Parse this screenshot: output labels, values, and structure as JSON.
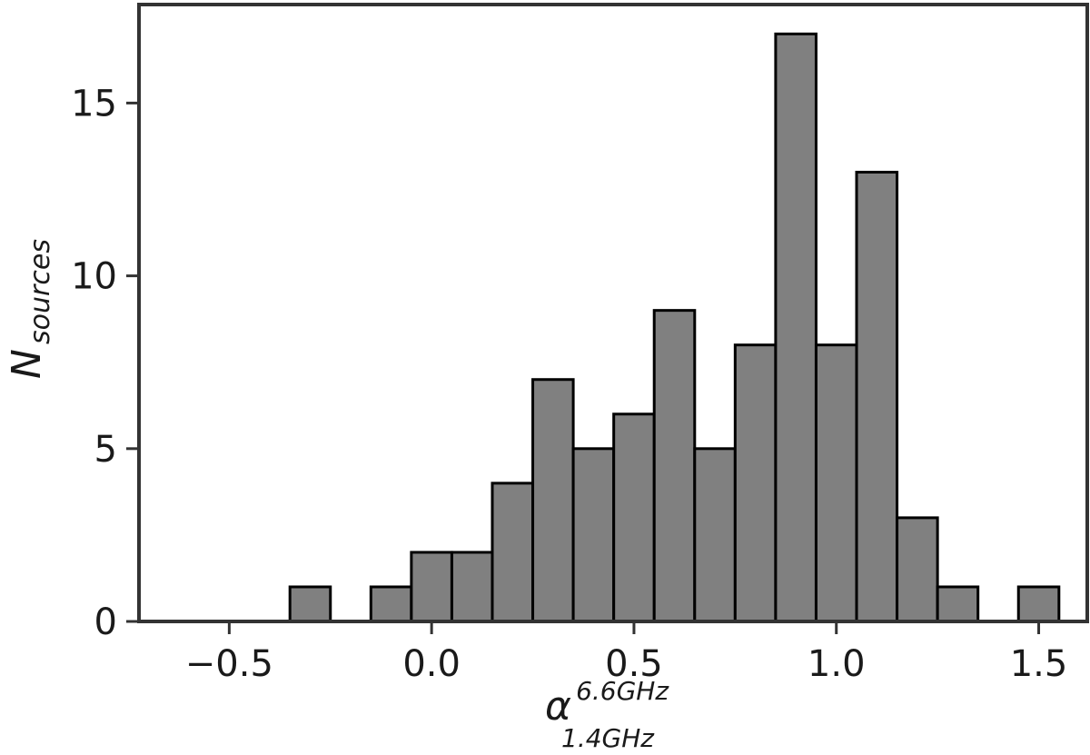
{
  "chart_data": {
    "type": "bar",
    "title": "",
    "xlabel": {
      "symbol": "α",
      "superscript": "6.6GHz",
      "subscript": "1.4GHz"
    },
    "ylabel": {
      "symbol": "N",
      "subscript": "sources"
    },
    "bin_width": 0.1,
    "bins": [
      {
        "left": -0.35,
        "count": 1
      },
      {
        "left": -0.15,
        "count": 1
      },
      {
        "left": -0.05,
        "count": 2
      },
      {
        "left": 0.05,
        "count": 2
      },
      {
        "left": 0.15,
        "count": 4
      },
      {
        "left": 0.25,
        "count": 7
      },
      {
        "left": 0.35,
        "count": 5
      },
      {
        "left": 0.45,
        "count": 6
      },
      {
        "left": 0.55,
        "count": 9
      },
      {
        "left": 0.65,
        "count": 5
      },
      {
        "left": 0.75,
        "count": 8
      },
      {
        "left": 0.85,
        "count": 17
      },
      {
        "left": 0.95,
        "count": 8
      },
      {
        "left": 1.05,
        "count": 13
      },
      {
        "left": 1.15,
        "count": 3
      },
      {
        "left": 1.25,
        "count": 1
      },
      {
        "left": 1.45,
        "count": 1
      }
    ],
    "xlim": [
      -0.723,
      1.62
    ],
    "ylim": [
      0,
      17.85
    ],
    "xticks": [
      -0.5,
      0.0,
      0.5,
      1.0,
      1.5
    ],
    "xtick_labels": [
      "−0.5",
      "0.0",
      "0.5",
      "1.0",
      "1.5"
    ],
    "yticks": [
      0,
      5,
      10,
      15
    ],
    "ytick_labels": [
      "0",
      "5",
      "10",
      "15"
    ],
    "grid": false,
    "colors": {
      "bar_fill": "#808080",
      "bar_edge": "#000000",
      "axes": "#333333",
      "text": "#1a1a1a"
    }
  }
}
